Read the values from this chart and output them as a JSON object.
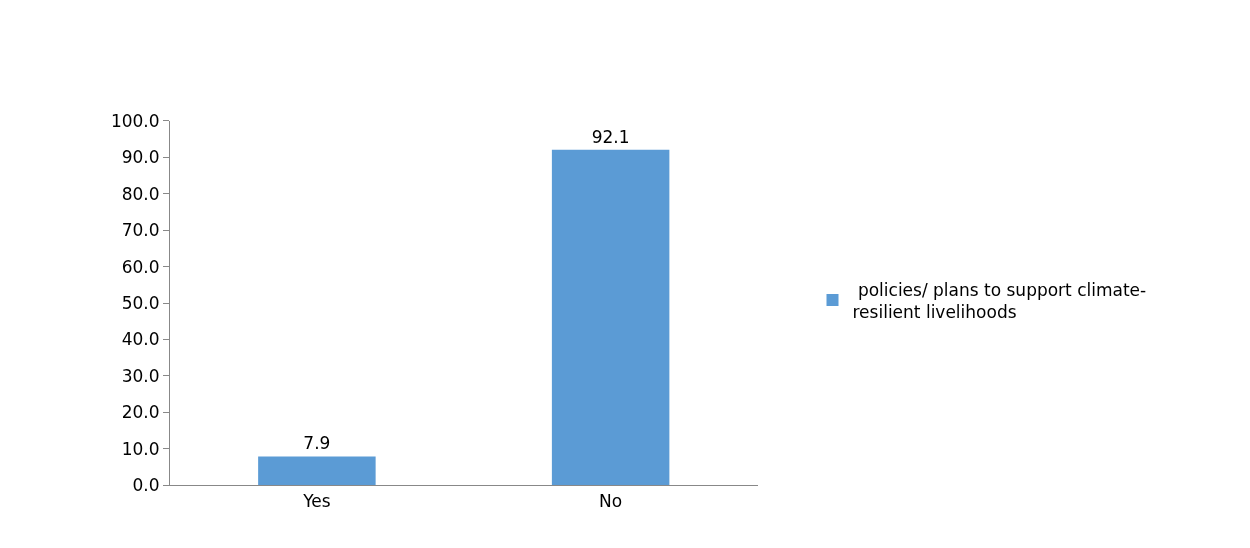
{
  "chart_data": {
    "type": "bar",
    "categories": [
      "Yes",
      "No"
    ],
    "series": [
      {
        "name": " policies/ plans to support climate-resilient livelihoods",
        "color": "#5b9bd5",
        "values": [
          7.9,
          92.1
        ]
      }
    ],
    "ylim": [
      0,
      100
    ],
    "yticks": [
      {
        "value": 0,
        "label": "0.0"
      },
      {
        "value": 10,
        "label": "10.0"
      },
      {
        "value": 20,
        "label": "20.0"
      },
      {
        "value": 30,
        "label": "30.0"
      },
      {
        "value": 40,
        "label": "40.0"
      },
      {
        "value": 50,
        "label": "50.0"
      },
      {
        "value": 60,
        "label": "60.0"
      },
      {
        "value": 70,
        "label": "70.0"
      },
      {
        "value": 80,
        "label": "80.0"
      },
      {
        "value": 90,
        "label": "90.0"
      },
      {
        "value": 100,
        "label": "100.0"
      }
    ],
    "data_labels": true,
    "legend": "right"
  }
}
